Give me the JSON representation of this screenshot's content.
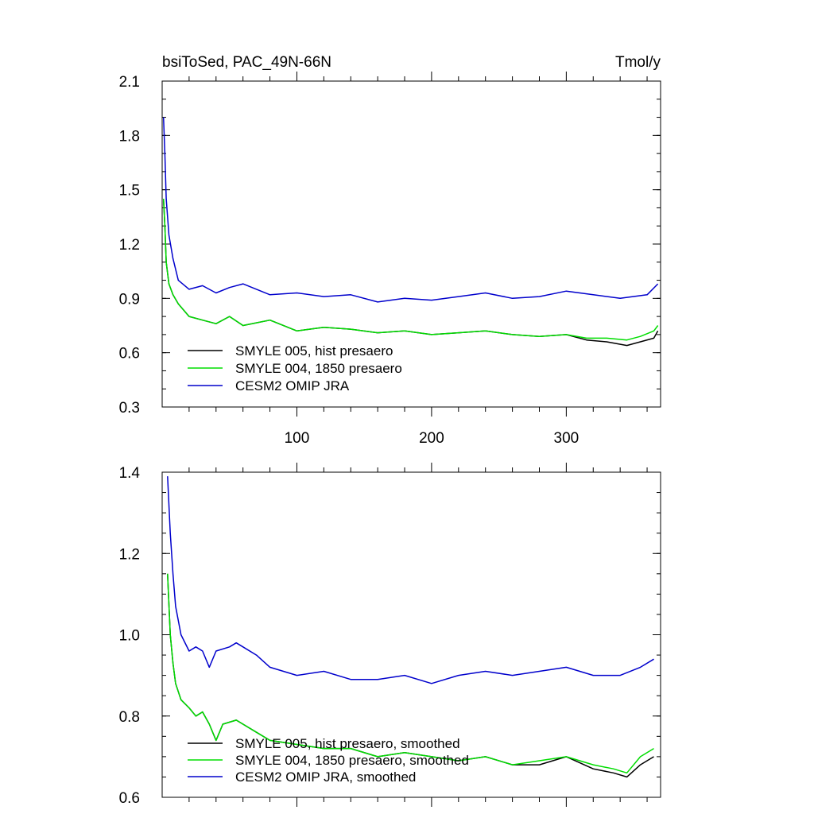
{
  "chart_data": [
    {
      "type": "line",
      "title": "bsiToSed, PAC_49N-66N",
      "units": "Tmol/y",
      "xlim": [
        0,
        370
      ],
      "ylim": [
        0.3,
        2.1
      ],
      "xticks": [
        100,
        200,
        300
      ],
      "yticks": [
        "0.3",
        "0.6",
        "0.9",
        "1.2",
        "1.5",
        "1.8",
        "2.1"
      ],
      "legend_position": "bottom-left",
      "series": [
        {
          "name": "SMYLE 005, hist presaero",
          "color": "#000000",
          "x": [
            1,
            2,
            3,
            5,
            8,
            12,
            20,
            30,
            40,
            50,
            60,
            80,
            100,
            120,
            140,
            160,
            180,
            200,
            220,
            240,
            260,
            280,
            300,
            315,
            330,
            345,
            355,
            365,
            368
          ],
          "y": [
            1.45,
            1.3,
            1.1,
            0.98,
            0.92,
            0.87,
            0.8,
            0.78,
            0.76,
            0.8,
            0.75,
            0.78,
            0.72,
            0.74,
            0.73,
            0.71,
            0.72,
            0.7,
            0.71,
            0.72,
            0.7,
            0.69,
            0.7,
            0.67,
            0.66,
            0.64,
            0.66,
            0.68,
            0.72
          ]
        },
        {
          "name": "SMYLE 004, 1850 presaero",
          "color": "#00dd00",
          "x": [
            1,
            2,
            3,
            5,
            8,
            12,
            20,
            30,
            40,
            50,
            60,
            80,
            100,
            120,
            140,
            160,
            180,
            200,
            220,
            240,
            260,
            280,
            300,
            315,
            330,
            345,
            355,
            365,
            368
          ],
          "y": [
            1.45,
            1.3,
            1.1,
            0.98,
            0.92,
            0.87,
            0.8,
            0.78,
            0.76,
            0.8,
            0.75,
            0.78,
            0.72,
            0.74,
            0.73,
            0.71,
            0.72,
            0.7,
            0.71,
            0.72,
            0.7,
            0.69,
            0.7,
            0.68,
            0.68,
            0.67,
            0.69,
            0.72,
            0.75
          ]
        },
        {
          "name": "CESM2 OMIP JRA",
          "color": "#0000cc",
          "x": [
            1,
            2,
            3,
            5,
            8,
            12,
            20,
            30,
            40,
            50,
            60,
            80,
            100,
            120,
            140,
            160,
            180,
            200,
            220,
            240,
            260,
            280,
            300,
            320,
            340,
            360,
            368
          ],
          "y": [
            1.9,
            1.7,
            1.45,
            1.25,
            1.12,
            1.0,
            0.95,
            0.97,
            0.93,
            0.96,
            0.98,
            0.92,
            0.93,
            0.91,
            0.92,
            0.88,
            0.9,
            0.89,
            0.91,
            0.93,
            0.9,
            0.91,
            0.94,
            0.92,
            0.9,
            0.92,
            0.98
          ]
        }
      ]
    },
    {
      "type": "line",
      "xlim": [
        0,
        370
      ],
      "ylim": [
        0.6,
        1.4
      ],
      "yticks": [
        "0.6",
        "0.8",
        "1.0",
        "1.2",
        "1.4"
      ],
      "legend_position": "bottom-left",
      "series": [
        {
          "name": "SMYLE 005, hist presaero, smoothed",
          "color": "#000000",
          "x": [
            4,
            6,
            8,
            10,
            14,
            20,
            25,
            30,
            35,
            40,
            45,
            55,
            60,
            70,
            80,
            100,
            120,
            140,
            160,
            180,
            200,
            220,
            240,
            260,
            280,
            300,
            320,
            335,
            345,
            355,
            365
          ],
          "y": [
            1.15,
            1.0,
            0.93,
            0.88,
            0.84,
            0.82,
            0.8,
            0.81,
            0.78,
            0.74,
            0.78,
            0.79,
            0.78,
            0.76,
            0.74,
            0.73,
            0.72,
            0.72,
            0.7,
            0.71,
            0.7,
            0.69,
            0.7,
            0.68,
            0.68,
            0.7,
            0.67,
            0.66,
            0.65,
            0.68,
            0.7
          ]
        },
        {
          "name": "SMYLE 004, 1850 presaero, smoothed",
          "color": "#00dd00",
          "x": [
            4,
            6,
            8,
            10,
            14,
            20,
            25,
            30,
            35,
            40,
            45,
            55,
            60,
            70,
            80,
            100,
            120,
            140,
            160,
            180,
            200,
            220,
            240,
            260,
            280,
            300,
            320,
            335,
            345,
            355,
            365
          ],
          "y": [
            1.15,
            1.0,
            0.93,
            0.88,
            0.84,
            0.82,
            0.8,
            0.81,
            0.78,
            0.74,
            0.78,
            0.79,
            0.78,
            0.76,
            0.74,
            0.73,
            0.72,
            0.72,
            0.7,
            0.71,
            0.7,
            0.69,
            0.7,
            0.68,
            0.69,
            0.7,
            0.68,
            0.67,
            0.66,
            0.7,
            0.72
          ]
        },
        {
          "name": "CESM2 OMIP JRA, smoothed",
          "color": "#0000cc",
          "x": [
            4,
            6,
            8,
            10,
            14,
            20,
            25,
            30,
            35,
            40,
            50,
            55,
            60,
            70,
            80,
            100,
            120,
            140,
            160,
            180,
            200,
            220,
            240,
            260,
            280,
            300,
            320,
            340,
            355,
            365
          ],
          "y": [
            1.39,
            1.25,
            1.15,
            1.07,
            1.0,
            0.96,
            0.97,
            0.96,
            0.92,
            0.96,
            0.97,
            0.98,
            0.97,
            0.95,
            0.92,
            0.9,
            0.91,
            0.89,
            0.89,
            0.9,
            0.88,
            0.9,
            0.91,
            0.9,
            0.91,
            0.92,
            0.9,
            0.9,
            0.92,
            0.94
          ]
        }
      ]
    }
  ]
}
